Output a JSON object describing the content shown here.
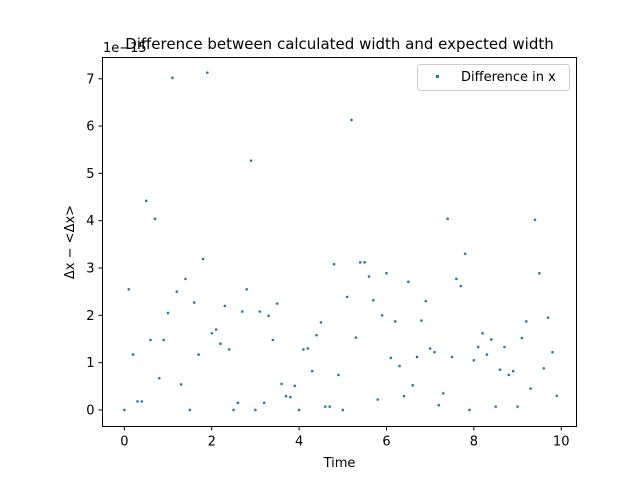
{
  "chart_data": {
    "type": "scatter",
    "title": "Difference between calculated width and expected width",
    "xlabel": "Time",
    "ylabel": "Δx − <Δx>",
    "offset_text": "1e−15",
    "xlim": [
      -0.5,
      10.35
    ],
    "ylim": [
      -0.35,
      7.45
    ],
    "xticks": [
      0,
      2,
      4,
      6,
      8,
      10
    ],
    "yticks": [
      0,
      1,
      2,
      3,
      4,
      5,
      6,
      7
    ],
    "grid": false,
    "legend_position": "top-right",
    "marker_color": "#1f77b4",
    "series": [
      {
        "name": "Difference in x",
        "x": [
          0.0,
          0.1,
          0.2,
          0.3,
          0.4,
          0.5,
          0.6,
          0.7,
          0.8,
          0.9,
          1.0,
          1.1,
          1.2,
          1.3,
          1.4,
          1.5,
          1.6,
          1.7,
          1.8,
          1.9,
          2.0,
          2.1,
          2.2,
          2.3,
          2.4,
          2.5,
          2.6,
          2.7,
          2.8,
          2.9,
          3.0,
          3.1,
          3.2,
          3.3,
          3.4,
          3.5,
          3.6,
          3.7,
          3.8,
          3.9,
          4.0,
          4.1,
          4.2,
          4.3,
          4.4,
          4.5,
          4.6,
          4.7,
          4.8,
          4.9,
          5.0,
          5.1,
          5.2,
          5.3,
          5.4,
          5.5,
          5.6,
          5.7,
          5.8,
          5.9,
          6.0,
          6.1,
          6.2,
          6.3,
          6.4,
          6.5,
          6.6,
          6.7,
          6.8,
          6.9,
          7.0,
          7.1,
          7.2,
          7.3,
          7.4,
          7.5,
          7.6,
          7.7,
          7.8,
          7.9,
          8.0,
          8.1,
          8.2,
          8.3,
          8.4,
          8.5,
          8.6,
          8.7,
          8.8,
          8.9,
          9.0,
          9.1,
          9.2,
          9.3,
          9.4,
          9.5,
          9.6,
          9.7,
          9.8,
          9.9
        ],
        "y": [
          0.0,
          2.55,
          1.17,
          0.18,
          0.18,
          4.42,
          1.48,
          4.04,
          0.67,
          1.48,
          2.05,
          7.02,
          2.5,
          0.54,
          2.77,
          0.0,
          2.27,
          1.17,
          3.19,
          7.13,
          1.62,
          1.7,
          1.4,
          2.2,
          1.28,
          0.0,
          0.15,
          2.08,
          2.55,
          5.27,
          0.0,
          2.08,
          0.15,
          1.99,
          1.48,
          2.25,
          0.55,
          0.29,
          0.27,
          0.51,
          0.0,
          1.28,
          1.3,
          0.82,
          1.58,
          1.85,
          0.07,
          0.07,
          3.08,
          0.74,
          0.0,
          2.39,
          6.13,
          1.53,
          3.12,
          3.12,
          2.82,
          2.32,
          0.22,
          2.0,
          2.89,
          1.1,
          1.87,
          0.93,
          0.29,
          2.71,
          0.52,
          1.12,
          1.89,
          2.3,
          1.3,
          1.22,
          0.1,
          0.35,
          4.04,
          1.12,
          2.77,
          2.62,
          3.3,
          0.0,
          1.05,
          1.33,
          1.62,
          1.17,
          1.49,
          0.07,
          0.85,
          1.33,
          0.74,
          0.82,
          0.07,
          1.52,
          1.87,
          0.45,
          4.02,
          2.89,
          0.88,
          1.95,
          1.22,
          0.3
        ]
      }
    ]
  }
}
